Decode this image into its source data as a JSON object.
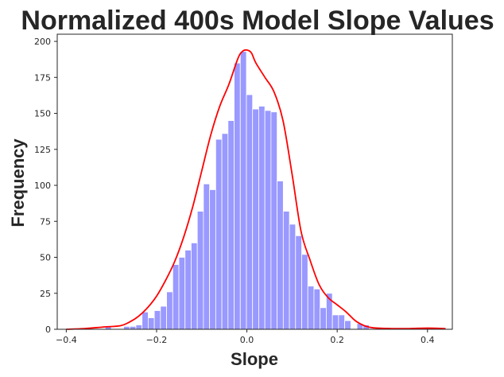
{
  "chart_data": {
    "type": "bar",
    "title": "Normalized 400s Model Slope Values",
    "xlabel": "Slope",
    "ylabel": "Frequency",
    "xlim": [
      -0.42,
      0.455
    ],
    "ylim": [
      0,
      205
    ],
    "xticks": [
      -0.4,
      -0.2,
      0.0,
      0.2,
      0.4
    ],
    "xtick_labels": [
      "−0.4",
      "−0.2",
      "0.0",
      "0.2",
      "0.4"
    ],
    "yticks": [
      0,
      25,
      50,
      75,
      100,
      125,
      150,
      175,
      200
    ],
    "ytick_labels": [
      "0",
      "25",
      "50",
      "75",
      "100",
      "125",
      "150",
      "175",
      "200"
    ],
    "grid": false,
    "bin_width": 0.0136,
    "histogram": {
      "name": "",
      "color": "#9999ff",
      "bin_starts": [
        -0.3138,
        -0.3002,
        -0.2866,
        -0.273,
        -0.2594,
        -0.2458,
        -0.2322,
        -0.2186,
        -0.205,
        -0.1914,
        -0.1778,
        -0.1642,
        -0.1506,
        -0.137,
        -0.1234,
        -0.1098,
        -0.0962,
        -0.0826,
        -0.069,
        -0.0554,
        -0.0418,
        -0.0282,
        -0.0146,
        -0.001,
        0.0126,
        0.0262,
        0.0398,
        0.0534,
        0.067,
        0.0806,
        0.0942,
        0.1078,
        0.1214,
        0.135,
        0.1486,
        0.1622,
        0.1758,
        0.1894,
        0.203,
        0.2166,
        0.2302,
        0.2438,
        0.2574
      ],
      "values": [
        2,
        0,
        0,
        2,
        2,
        3,
        12,
        8,
        13,
        16,
        26,
        45,
        50,
        55,
        60,
        82,
        101,
        97,
        132,
        136,
        145,
        185,
        193,
        163,
        153,
        155,
        152,
        151,
        103,
        82,
        73,
        65,
        52,
        30,
        28,
        15,
        25,
        10,
        10,
        6,
        0,
        4,
        3
      ]
    },
    "kde": {
      "name": "",
      "color": "#ff0000",
      "x": [
        -0.4,
        -0.36,
        -0.32,
        -0.28,
        -0.26,
        -0.24,
        -0.22,
        -0.2,
        -0.18,
        -0.16,
        -0.14,
        -0.12,
        -0.1,
        -0.08,
        -0.06,
        -0.04,
        -0.02,
        -0.01,
        0.0,
        0.01,
        0.02,
        0.04,
        0.06,
        0.08,
        0.1,
        0.12,
        0.14,
        0.16,
        0.18,
        0.2,
        0.22,
        0.24,
        0.26,
        0.28,
        0.32,
        0.36,
        0.4,
        0.44
      ],
      "y": [
        0,
        0.5,
        1.5,
        2.5,
        5,
        9,
        15,
        23,
        34,
        47,
        64,
        85,
        110,
        135,
        155,
        170,
        188,
        193,
        194,
        192,
        185,
        175,
        165,
        145,
        108,
        68,
        48,
        31,
        22,
        17,
        12,
        6,
        2.5,
        1,
        0.5,
        0.5,
        0.8,
        0.5
      ]
    }
  }
}
